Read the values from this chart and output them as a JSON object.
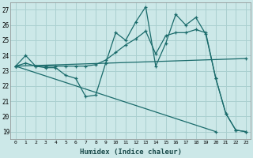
{
  "xlabel": "Humidex (Indice chaleur)",
  "background_color": "#cce8e8",
  "grid_color": "#aad0d0",
  "line_color": "#1a6b6b",
  "xlim": [
    -0.5,
    23.5
  ],
  "ylim": [
    18.5,
    27.5
  ],
  "xticks": [
    0,
    1,
    2,
    3,
    4,
    5,
    6,
    7,
    8,
    9,
    10,
    11,
    12,
    13,
    14,
    15,
    16,
    17,
    18,
    19,
    20,
    21,
    22,
    23
  ],
  "yticks": [
    19,
    20,
    21,
    22,
    23,
    24,
    25,
    26,
    27
  ],
  "line1_x": [
    0,
    1,
    2,
    3,
    4,
    5,
    6,
    7,
    8,
    9,
    10,
    11,
    12,
    13,
    14,
    15,
    16,
    17,
    18,
    19,
    20,
    21,
    22,
    23
  ],
  "line1_y": [
    23.3,
    24.0,
    23.3,
    23.2,
    23.2,
    22.7,
    22.5,
    21.3,
    21.4,
    23.5,
    25.5,
    25.0,
    26.2,
    27.2,
    23.3,
    24.8,
    26.7,
    26.0,
    26.5,
    25.4,
    22.5,
    20.2,
    19.1,
    19.0
  ],
  "line2_x": [
    0,
    1,
    2,
    3,
    4,
    5,
    6,
    7,
    8,
    9,
    10,
    11,
    12,
    13,
    14,
    15,
    16,
    17,
    18,
    19,
    20,
    21,
    22,
    23
  ],
  "line2_y": [
    23.3,
    23.5,
    23.3,
    23.3,
    23.3,
    23.3,
    23.3,
    23.3,
    23.4,
    23.7,
    24.2,
    24.7,
    25.1,
    25.6,
    24.1,
    25.3,
    25.5,
    25.5,
    25.7,
    25.5,
    22.5,
    20.2,
    19.1,
    19.0
  ],
  "line3_x": [
    0,
    23
  ],
  "line3_y": [
    23.3,
    23.8
  ],
  "line4_x": [
    0,
    20
  ],
  "line4_y": [
    23.3,
    19.0
  ]
}
